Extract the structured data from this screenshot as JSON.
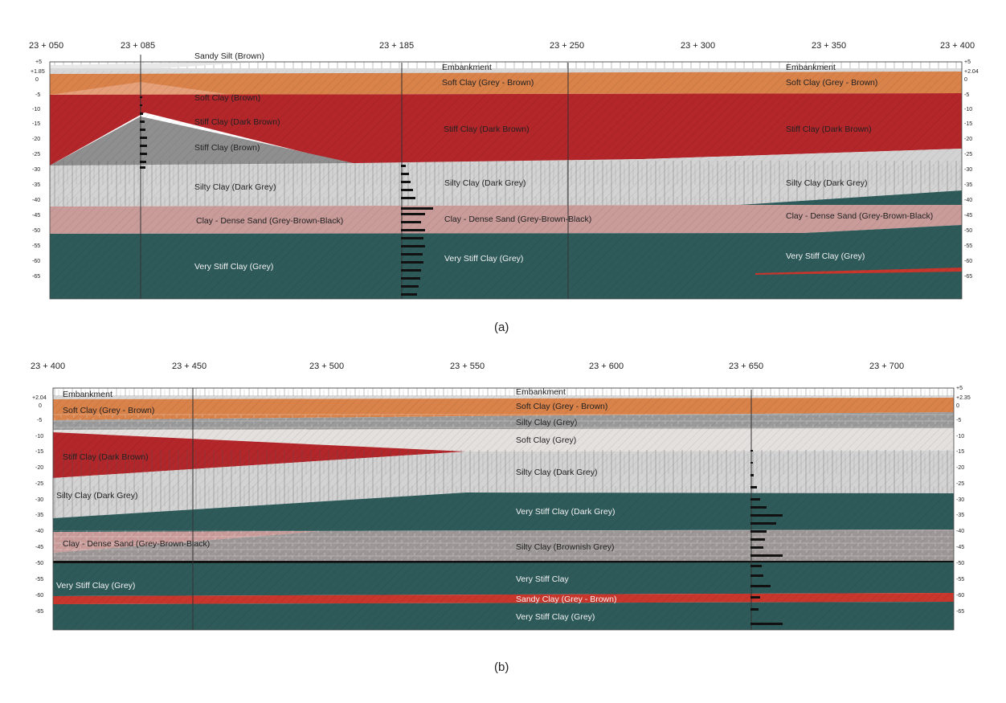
{
  "colors": {
    "embankment": "#dcdcdc",
    "soft_clay_grey_brown": "#d9824a",
    "soft_clay_brown": "#e6a07a",
    "stiff_clay_dark_brown": "#b3262a",
    "stiff_clay_brown": "#8f8f8f",
    "silty_clay_dark_grey": "#d3d3d3",
    "clay_dense_sand": "#c99c9a",
    "very_stiff_clay": "#2f5a5a",
    "silty_clay_grey": "#9a9a9a",
    "soft_clay_grey": "#e4e0dd",
    "silty_clay_brownish_grey": "#9e9797",
    "sandy_clay": "#c8362c"
  },
  "panel_a": {
    "caption": "(a)",
    "stations": [
      "23 + 050",
      "23 + 085",
      "23 + 185",
      "23 + 250",
      "23 + 300",
      "23 + 350",
      "23 + 400"
    ],
    "depth_ticks_left": [
      "+5",
      "+1.85",
      "0",
      "-5",
      "-10",
      "-15",
      "-20",
      "-25",
      "-30",
      "-35",
      "-40",
      "-45",
      "-50",
      "-55",
      "-60",
      "-65"
    ],
    "depth_ticks_right": [
      "+5",
      "+2.04",
      "0",
      "-5",
      "-10",
      "-15",
      "-20",
      "-25",
      "-30",
      "-35",
      "-40",
      "-45",
      "-50",
      "-55",
      "-60",
      "-65"
    ],
    "layer_labels": {
      "sandy_silt": "Sandy Silt (Brown)",
      "embankment_1": "Embankment",
      "embankment_2": "Embankment",
      "soft_clay_brown": "Soft Clay (Brown)",
      "soft_clay_gb_1": "Soft Clay (Grey - Brown)",
      "soft_clay_gb_2": "Soft Clay (Grey - Brown)",
      "stiff_db_1": "Stiff Clay (Dark Brown)",
      "stiff_db_2": "Stiff Clay (Dark Brown)",
      "stiff_db_3": "Stiff Clay (Dark Brown)",
      "stiff_brown": "Stiff Clay (Brown)",
      "silty_dg_1": "Silty Clay (Dark Grey)",
      "silty_dg_2": "Silty Clay (Dark Grey)",
      "silty_dg_3": "Silty Clay (Dark Grey)",
      "dense_sand_1": "Clay - Dense Sand (Grey-Brown-Black)",
      "dense_sand_2": "Clay - Dense Sand (Grey-Brown-Black)",
      "dense_sand_3": "Clay - Dense Sand (Grey-Brown-Black)",
      "vstiff_1": "Very Stiff Clay (Grey)",
      "vstiff_2": "Very Stiff Clay (Grey)",
      "vstiff_3": "Very Stiff Clay (Grey)"
    }
  },
  "panel_b": {
    "caption": "(b)",
    "stations": [
      "23 + 400",
      "23 + 450",
      "23 + 500",
      "23 + 550",
      "23 + 600",
      "23 + 650",
      "23 + 700"
    ],
    "depth_ticks_left": [
      "+2.04",
      "0",
      "-5",
      "-10",
      "-15",
      "-20",
      "-25",
      "-30",
      "-35",
      "-40",
      "-45",
      "-50",
      "-55",
      "-60",
      "-65"
    ],
    "depth_ticks_right": [
      "+5",
      "+2.35",
      "0",
      "-5",
      "-10",
      "-15",
      "-20",
      "-25",
      "-30",
      "-35",
      "-40",
      "-45",
      "-50",
      "-55",
      "-60",
      "-65"
    ],
    "layer_labels": {
      "embankment_1": "Embankment",
      "embankment_2": "Embankment",
      "soft_clay_gb_1": "Soft Clay (Grey - Brown)",
      "soft_clay_gb_2": "Soft Clay (Grey - Brown)",
      "silty_grey": "Silty Clay (Grey)",
      "soft_grey": "Soft Clay (Grey)",
      "stiff_db": "Stiff Clay (Dark Brown)",
      "silty_dg_1": "Silty Clay (Dark Grey)",
      "silty_dg_2": "Silty Clay (Dark Grey)",
      "vstiff_dg": "Very Stiff Clay (Dark Grey)",
      "dense_sand": "Clay - Dense Sand (Grey-Brown-Black)",
      "silty_bg": "Silty Clay (Brownish Grey)",
      "vstiff": "Very Stiff Clay",
      "vstiff_grey_1": "Very Stiff Clay (Grey)",
      "sandy_clay": "Sandy Clay (Grey - Brown)",
      "vstiff_grey_2": "Very Stiff Clay (Grey)"
    }
  }
}
